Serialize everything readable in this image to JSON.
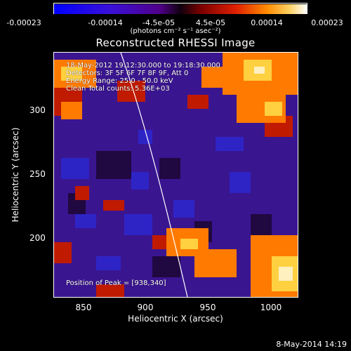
{
  "colorbar": {
    "ticks": [
      "-0.00023",
      "-0.00014",
      "-4.5e-05",
      "4.5e-05",
      "0.00014",
      "0.00023"
    ],
    "unit": "(photons cm⁻² s⁻¹ asec⁻²)"
  },
  "image": {
    "title": "Reconstructed RHESSI Image",
    "time_range": "18-May-2012 19:12:30.000 to 19:18:30.000",
    "detectors": "Detectors: 3F 5F 6F 7F 8F 9F, Att 0",
    "energy_range": "Energy Range: 25.0 - 50.0 keV",
    "clean_info": "Clean    Total counts: 5.36E+03",
    "peak_position": "Position of Peak = [938,340]"
  },
  "axes": {
    "xlabel": "Heliocentric X (arcsec)",
    "ylabel": "Heliocentric Y (arcsec)",
    "xticks": [
      "850",
      "900",
      "950",
      "1000"
    ],
    "yticks": [
      "300",
      "250",
      "200"
    ]
  },
  "footer": {
    "date": "8-May-2014 14:19"
  }
}
